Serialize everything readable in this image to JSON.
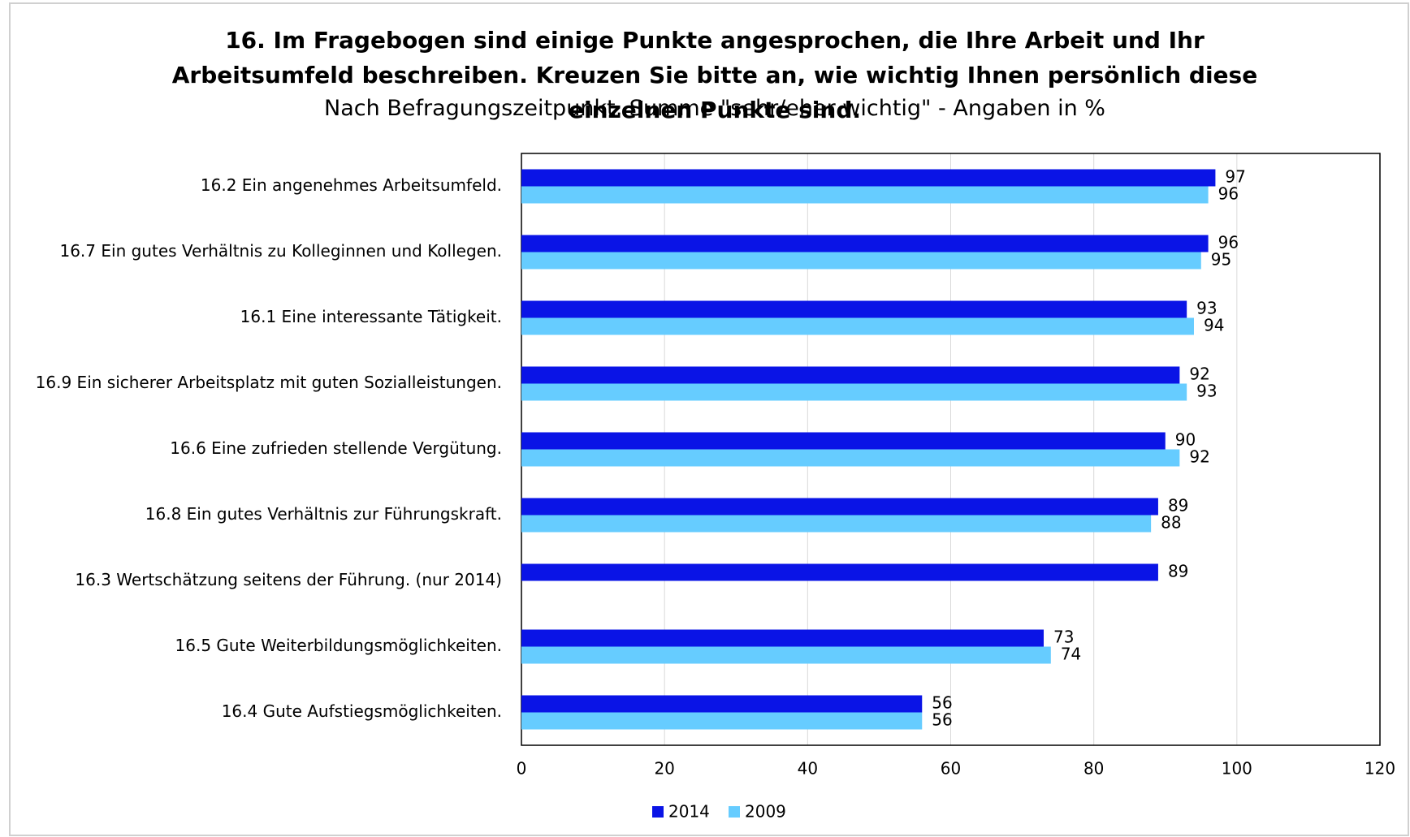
{
  "chart_data": {
    "type": "hbar",
    "title": "16. Im Fragebogen sind einige Punkte angesprochen, die Ihre Arbeit und Ihr Arbeitsumfeld beschreiben. Kreuzen Sie bitte an, wie wichtig Ihnen persönlich diese einzelnen Punkte sind.",
    "subtitle": "Nach Befragungszeitpunkt, Summe \"sehr/eher wichtig\" - Angaben in %",
    "categories": [
      "16.2 Ein angenehmes Arbeitsumfeld.",
      "16.7 Ein gutes Verhältnis zu Kolleginnen und Kollegen.",
      "16.1 Eine interessante Tätigkeit.",
      "16.9 Ein sicherer Arbeitsplatz mit guten Sozialleistungen.",
      "16.6 Eine zufrieden stellende Vergütung.",
      "16.8 Ein gutes Verhältnis zur Führungskraft.",
      "16.3 Wertschätzung seitens der Führung. (nur 2014)",
      "16.5 Gute Weiterbildungsmöglichkeiten.",
      "16.4 Gute Aufstiegsmöglichkeiten."
    ],
    "series": [
      {
        "name": "2014",
        "color": "#0a14e6",
        "values": [
          97,
          96,
          93,
          92,
          90,
          89,
          89,
          73,
          56
        ]
      },
      {
        "name": "2009",
        "color": "#66ccff",
        "values": [
          96,
          95,
          94,
          93,
          92,
          88,
          null,
          74,
          56
        ]
      }
    ],
    "xlim": [
      0,
      120
    ],
    "xticks": [
      0,
      20,
      40,
      60,
      80,
      100,
      120
    ],
    "grid": true,
    "legend": "bottom"
  }
}
